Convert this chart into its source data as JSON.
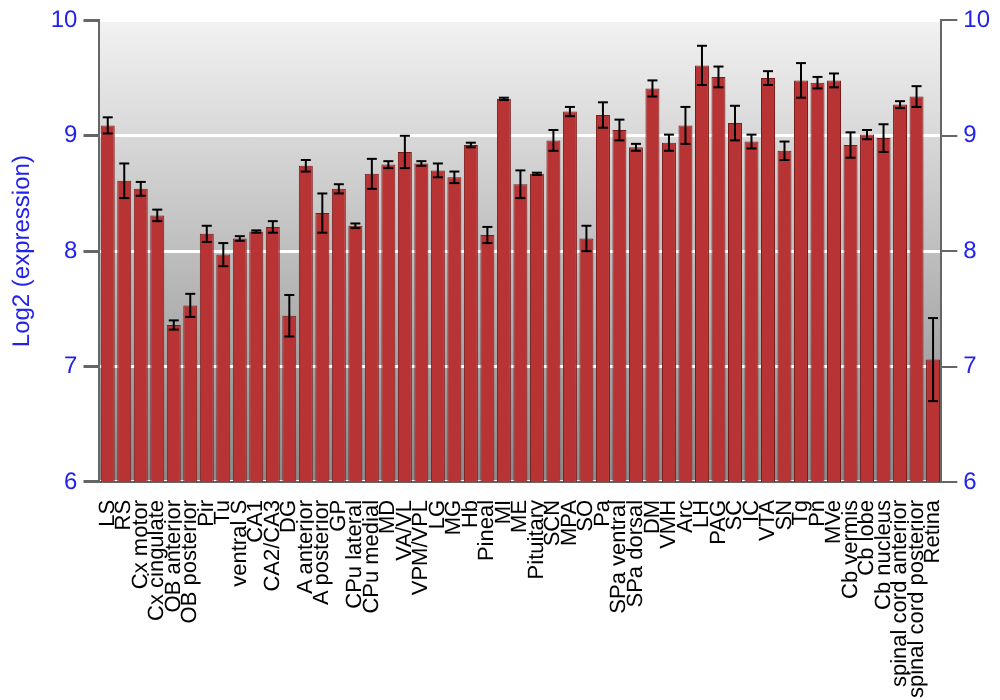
{
  "chart_data": {
    "type": "bar",
    "ylabel": "Log2 (expression)",
    "categories": [
      "LS",
      "RS",
      "Cx motor",
      "Cx cingulate",
      "OB anterior",
      "OB posterior",
      "Pir",
      "Tu",
      "ventral S",
      "CA1",
      "CA2/CA3",
      "DG",
      "A anterior",
      "A posterior",
      "GP",
      "CPu lateral",
      "CPu medial",
      "MD",
      "VA/VL",
      "VPM/VPL",
      "LG",
      "MG",
      "Hb",
      "Pineal",
      "MI",
      "ME",
      "Pituitary",
      "SCN",
      "MPA",
      "SO",
      "Pa",
      "SPa ventral",
      "SPa dorsal",
      "DM",
      "VMH",
      "Arc",
      "LH",
      "PAG",
      "SC",
      "IC",
      "VTA",
      "SN",
      "Tg",
      "Pn",
      "MVe",
      "Cb vermis",
      "Cb lobe",
      "Cb nucleus",
      "spinal cord anterior",
      "spinal cord posterior",
      "Retina"
    ],
    "values": [
      9.09,
      8.61,
      8.54,
      8.31,
      7.36,
      7.53,
      8.15,
      7.97,
      8.11,
      8.17,
      8.21,
      7.44,
      8.74,
      8.33,
      8.54,
      8.22,
      8.67,
      8.75,
      8.86,
      8.76,
      8.7,
      8.64,
      8.92,
      8.14,
      9.32,
      8.58,
      8.67,
      8.96,
      9.21,
      8.11,
      9.18,
      9.05,
      8.9,
      9.41,
      8.94,
      9.09,
      9.61,
      9.51,
      9.11,
      8.95,
      9.5,
      8.87,
      9.48,
      9.46,
      9.48,
      8.92,
      9.01,
      8.98,
      9.27,
      9.34,
      7.06
    ],
    "errors": [
      0.07,
      0.15,
      0.06,
      0.05,
      0.04,
      0.1,
      0.07,
      0.1,
      0.02,
      0.01,
      0.05,
      0.18,
      0.05,
      0.17,
      0.04,
      0.02,
      0.13,
      0.03,
      0.14,
      0.02,
      0.06,
      0.05,
      0.02,
      0.07,
      0.01,
      0.12,
      0.01,
      0.09,
      0.04,
      0.11,
      0.11,
      0.09,
      0.03,
      0.07,
      0.07,
      0.16,
      0.17,
      0.09,
      0.15,
      0.06,
      0.06,
      0.08,
      0.15,
      0.05,
      0.06,
      0.11,
      0.04,
      0.12,
      0.03,
      0.09,
      0.36
    ],
    "color": "#b83434",
    "ylim": [
      6,
      10
    ],
    "yticks": [
      6,
      7,
      8,
      9,
      10
    ],
    "y2lim": [
      6,
      10
    ],
    "y2ticks": [
      6,
      7,
      8,
      9,
      10
    ],
    "grid": "y",
    "legend": false
  }
}
